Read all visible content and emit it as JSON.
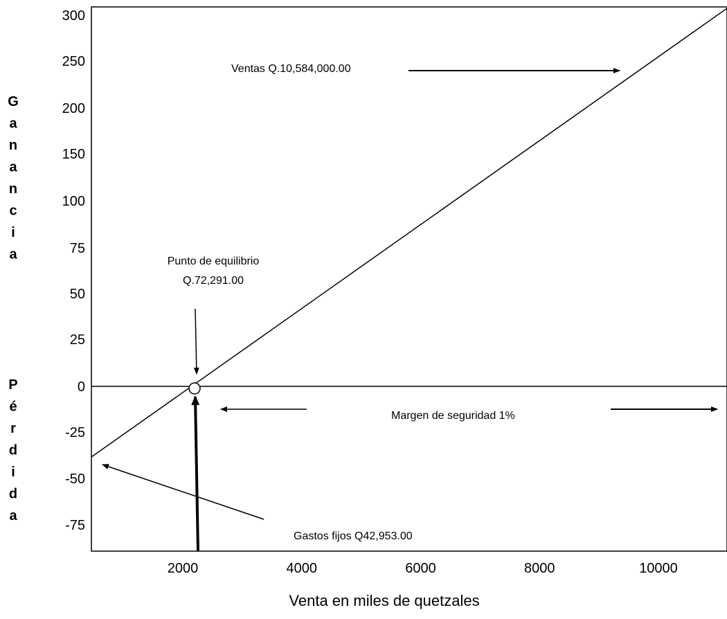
{
  "chart_data": {
    "type": "line",
    "xlabel": "Venta en miles de quetzales",
    "ylabel_top": "Ganancia",
    "ylabel_bottom": "Pérdida",
    "x_ticks": [
      "2000",
      "4000",
      "6000",
      "8000",
      "10000"
    ],
    "y_ticks": [
      "300",
      "250",
      "200",
      "150",
      "100",
      "75",
      "50",
      "25",
      "0",
      "-25",
      "-50",
      "-75"
    ],
    "series": [
      {
        "values": [
          {
            "y": "-50",
            "x_at": 450
          },
          {
            "y": "300",
            "x_at": 11500
          }
        ]
      }
    ],
    "break_even_x": 2200,
    "annotations": {
      "ventas": "Ventas Q.10,584,000.00",
      "punto_line1": "Punto de equilibrio",
      "punto_line2": "Q.72,291.00",
      "margen": "Margen de seguridad 1%",
      "gastos": "Gastos fijos Q42,953.00"
    },
    "grid": false,
    "legend": "none"
  }
}
